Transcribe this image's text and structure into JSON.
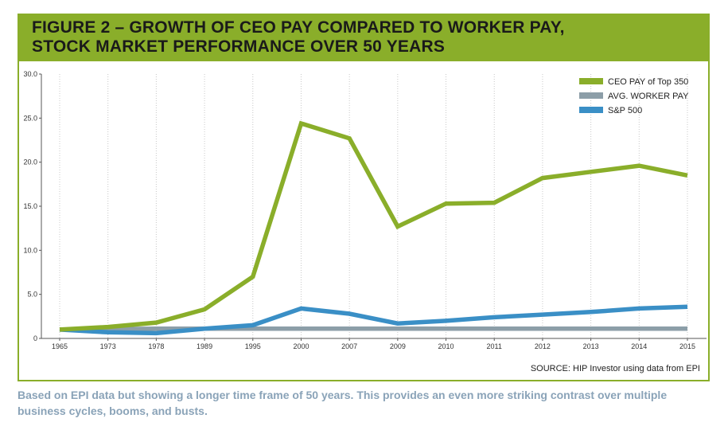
{
  "header": {
    "title_line1": "FIGURE 2 – GROWTH OF CEO PAY COMPARED TO WORKER PAY,",
    "title_line2": "STOCK MARKET PERFORMANCE OVER 50 YEARS"
  },
  "source": "SOURCE: HIP Investor using data from EPI",
  "caption": "Based on EPI data but showing a longer time frame of 50 years. This provides an even more striking contrast over multiple business cycles, booms, and busts.",
  "colors": {
    "brand_green": "#8aae2a",
    "ceo_pay": "#8aae2a",
    "worker_pay": "#8c9ea8",
    "sp500": "#3a8fc6",
    "caption_text": "#8aa3b8"
  },
  "chart_data": {
    "type": "line",
    "title": "FIGURE 2 – GROWTH OF CEO PAY COMPARED TO WORKER PAY, STOCK MARKET PERFORMANCE OVER 50 YEARS",
    "xlabel": "",
    "ylabel": "",
    "categories": [
      "1965",
      "1973",
      "1978",
      "1989",
      "1995",
      "2000",
      "2007",
      "2009",
      "2010",
      "2011",
      "2012",
      "2013",
      "2014",
      "2015"
    ],
    "ylim": [
      0,
      30
    ],
    "yticks": [
      "0",
      "5.0",
      "10.0",
      "15.0",
      "20.0",
      "25.0",
      "30.0"
    ],
    "grid": "vertical",
    "legend_position": "top-right",
    "series": [
      {
        "name": "CEO PAY of Top 350",
        "color": "#8aae2a",
        "values": [
          1.0,
          1.3,
          1.8,
          3.3,
          7.0,
          24.4,
          22.7,
          12.7,
          15.3,
          15.4,
          18.2,
          18.9,
          19.6,
          18.5
        ]
      },
      {
        "name": "AVG. WORKER PAY",
        "color": "#8c9ea8",
        "values": [
          1.0,
          1.05,
          1.1,
          1.1,
          1.1,
          1.1,
          1.1,
          1.1,
          1.1,
          1.1,
          1.1,
          1.1,
          1.1,
          1.1
        ]
      },
      {
        "name": "S&P 500",
        "color": "#3a8fc6",
        "values": [
          1.0,
          0.7,
          0.6,
          1.1,
          1.5,
          3.4,
          2.8,
          1.7,
          2.0,
          2.4,
          2.7,
          3.0,
          3.4,
          3.6
        ]
      }
    ]
  }
}
